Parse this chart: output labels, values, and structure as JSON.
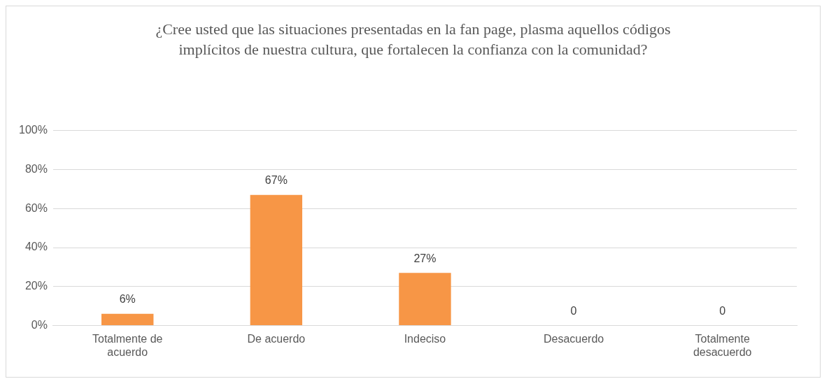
{
  "chart_data": {
    "type": "bar",
    "title": "¿Cree usted que las situaciones presentadas en la fan page, plasma aquellos códigos implícitos de nuestra cultura, que fortalecen la confianza con la comunidad?",
    "categories": [
      "Totalmente de acuerdo",
      "De acuerdo",
      "Indeciso",
      "Desacuerdo",
      "Totalmente desacuerdo"
    ],
    "values": [
      6,
      67,
      27,
      0,
      0
    ],
    "value_labels": [
      "6%",
      "67%",
      "27%",
      "0",
      "0"
    ],
    "color": "#f79646",
    "ylim": [
      0,
      100
    ],
    "yticks": [
      {
        "value": 0,
        "label": "0%"
      },
      {
        "value": 20,
        "label": "20%"
      },
      {
        "value": 40,
        "label": "40%"
      },
      {
        "value": 60,
        "label": "60%"
      },
      {
        "value": 80,
        "label": "80%"
      },
      {
        "value": 100,
        "label": "100%"
      }
    ],
    "grid": "y",
    "legend": false
  }
}
